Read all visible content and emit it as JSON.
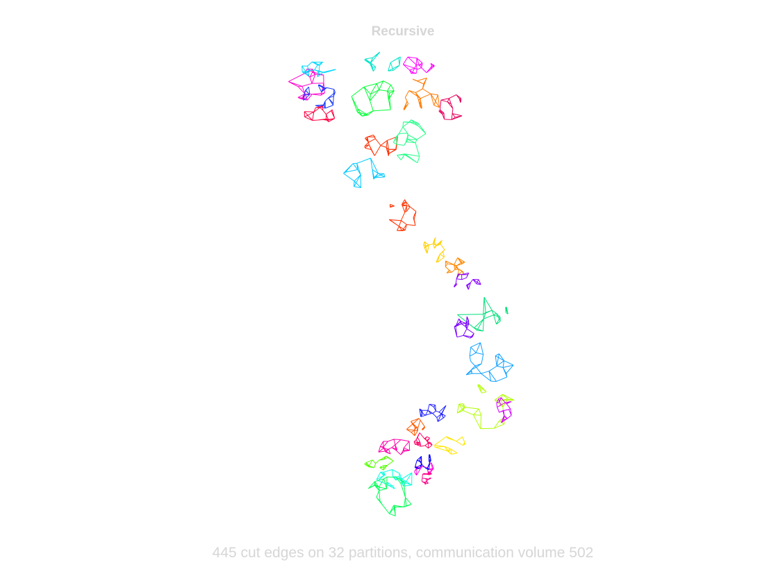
{
  "figure": {
    "title": "Recursive",
    "caption": "445 cut edges on 32 partitions, communication volume 502"
  },
  "partition_colors": [
    "#ff00cc",
    "#00d9ff",
    "#00ff33",
    "#00e5c8",
    "#1a3cff",
    "#ff7a00",
    "#ff2e00",
    "#e6005c",
    "#ff0040",
    "#00c8ff",
    "#ff3300",
    "#ffd000",
    "#ff8800",
    "#8800ff",
    "#00e07a",
    "#7a00ff",
    "#0fa0ff",
    "#b0ff00",
    "#d400ff",
    "#2020ff",
    "#ffe600",
    "#ff5a00",
    "#22ff88",
    "#ff00aa",
    "#ff0066",
    "#55ff00",
    "#ff00dd",
    "#0000ff",
    "#00ffe0",
    "#00ff55",
    "#ff0088",
    "#ff00ff"
  ]
}
